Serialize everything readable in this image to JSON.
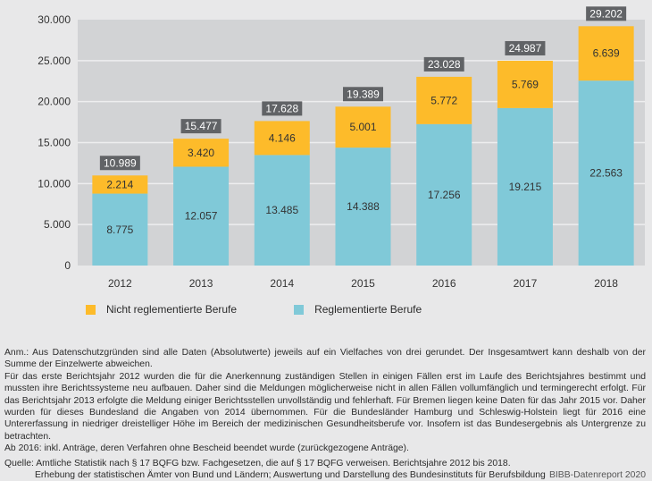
{
  "chart_data": {
    "type": "bar",
    "stacked": true,
    "categories": [
      "2012",
      "2013",
      "2014",
      "2015",
      "2016",
      "2017",
      "2018"
    ],
    "series": [
      {
        "name": "Reglementierte Berufe",
        "color": "#80c9d8",
        "values": [
          8775,
          12057,
          13485,
          14388,
          17256,
          19215,
          22563
        ],
        "labels": [
          "8.775",
          "12.057",
          "13.485",
          "14.388",
          "17.256",
          "19.215",
          "22.563"
        ]
      },
      {
        "name": "Nicht reglementierte Berufe",
        "color": "#fdbb2a",
        "values": [
          2214,
          3420,
          4146,
          5001,
          5772,
          5769,
          6639
        ],
        "labels": [
          "2.214",
          "3.420",
          "4.146",
          "5.001",
          "5.772",
          "5.769",
          "6.639"
        ]
      }
    ],
    "totals": [
      10989,
      15477,
      17628,
      19389,
      23028,
      24987,
      29202
    ],
    "total_labels": [
      "10.989",
      "15.477",
      "17.628",
      "19.389",
      "23.028",
      "24.987",
      "29.202"
    ],
    "ylim": [
      0,
      30000
    ],
    "yticks": [
      0,
      5000,
      10000,
      15000,
      20000,
      25000,
      30000
    ],
    "ytick_labels": [
      "0",
      "5.000",
      "10.000",
      "15.000",
      "20.000",
      "25.000",
      "30.000"
    ],
    "grid": true,
    "title": "",
    "xlabel": "",
    "ylabel": "",
    "legend_position": "bottom",
    "colors": {
      "plot_background": "#d2d3d5",
      "gridline": "#eeeeef",
      "total_badge": "#616366"
    }
  },
  "legend": [
    {
      "label": "Nicht reglementierte Berufe",
      "color": "#fdbb2a"
    },
    {
      "label": "Reglementierte Berufe",
      "color": "#80c9d8"
    }
  ],
  "notes": {
    "anm": "Anm.: Aus Datenschutzgründen sind alle Daten (Absolutwerte) jeweils auf ein Vielfaches von drei gerundet. Der Insgesamtwert kann deshalb von der Summe der Einzelwerte abweichen.",
    "para1": "Für das erste Berichtsjahr 2012 wurden die für die Anerkennung zuständigen Stellen in einigen Fällen erst im Laufe des Berichtsjahres bestimmt und mussten ihre Berichtssysteme neu aufbauen. Daher sind die Meldungen möglicherweise nicht in allen Fällen vollumfänglich und termingerecht erfolgt. Für das Berichtsjahr 2013 erfolgte die Meldung einiger Berichtsstellen unvollständig und fehlerhaft. Für Bremen liegen keine Daten für das Jahr 2015 vor. Daher wurden für dieses Bundesland die Angaben von 2014 übernommen. Für die Bundesländer Hamburg und Schleswig-Holstein liegt für 2016 eine Untererfassung in niedriger dreistelliger Höhe im Bereich der medizinischen Gesundheitsberufe vor. Insofern ist das Bundesergebnis als Untergrenze zu betrachten.",
    "para2": "Ab 2016: inkl. Anträge, deren Verfahren ohne Bescheid beendet wurde (zurückgezogene Anträge).",
    "source1": "Quelle: Amtliche Statistik nach § 17 BQFG bzw. Fachgesetzen, die auf § 17 BQFG verweisen. Berichtsjahre 2012 bis 2018.",
    "source2": "Erhebung der statistischen Ämter von Bund und Ländern; Auswertung und Darstellung des Bundesinstituts für Berufsbildung",
    "report": "BIBB-Datenreport 2020"
  }
}
